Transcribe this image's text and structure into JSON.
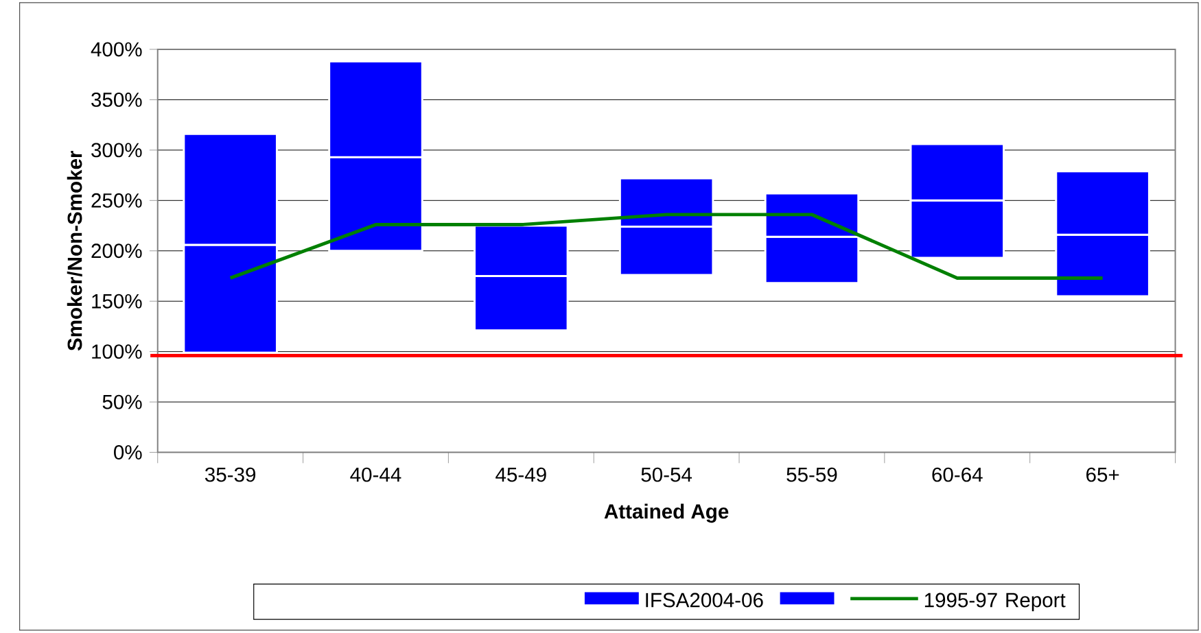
{
  "chart_data": {
    "type": "box",
    "xlabel": "Attained Age",
    "ylabel": "Smoker/Non-Smoker",
    "categories": [
      "35-39",
      "40-44",
      "45-49",
      "50-54",
      "55-59",
      "60-64",
      "65+"
    ],
    "series": [
      {
        "name": "IFSA2004-06",
        "color": "#0000ff",
        "boxes": [
          {
            "low": 99,
            "q1": 99,
            "median": 206,
            "q3": 316,
            "high": 316
          },
          {
            "low": 200,
            "q1": 200,
            "median": 293,
            "q3": 388,
            "high": 388
          },
          {
            "low": 121,
            "q1": 121,
            "median": 175,
            "q3": 225,
            "high": 225
          },
          {
            "low": 176,
            "q1": 176,
            "median": 224,
            "q3": 272,
            "high": 272
          },
          {
            "low": 168,
            "q1": 168,
            "median": 214,
            "q3": 257,
            "high": 257
          },
          {
            "low": 193,
            "q1": 193,
            "median": 250,
            "q3": 306,
            "high": 306
          },
          {
            "low": 155,
            "q1": 155,
            "median": 216,
            "q3": 279,
            "high": 279
          }
        ]
      },
      {
        "name": "1995-97 Report",
        "type": "line",
        "color": "#008000",
        "values": [
          173,
          226,
          226,
          236,
          236,
          173,
          173
        ]
      }
    ],
    "ylim": [
      0,
      400
    ],
    "yticks": [
      {
        "value": 0,
        "label": "0%"
      },
      {
        "value": 50,
        "label": "50%"
      },
      {
        "value": 100,
        "label": "100%"
      },
      {
        "value": 150,
        "label": "150%"
      },
      {
        "value": 200,
        "label": "200%"
      },
      {
        "value": 250,
        "label": "250%"
      },
      {
        "value": 300,
        "label": "300%"
      },
      {
        "value": 350,
        "label": "350%"
      },
      {
        "value": 400,
        "label": "400%"
      }
    ],
    "ref_lines": [
      {
        "axis": "y",
        "value": 96,
        "color": "#ff0000"
      }
    ],
    "grid": "y",
    "legend": "bottom"
  }
}
